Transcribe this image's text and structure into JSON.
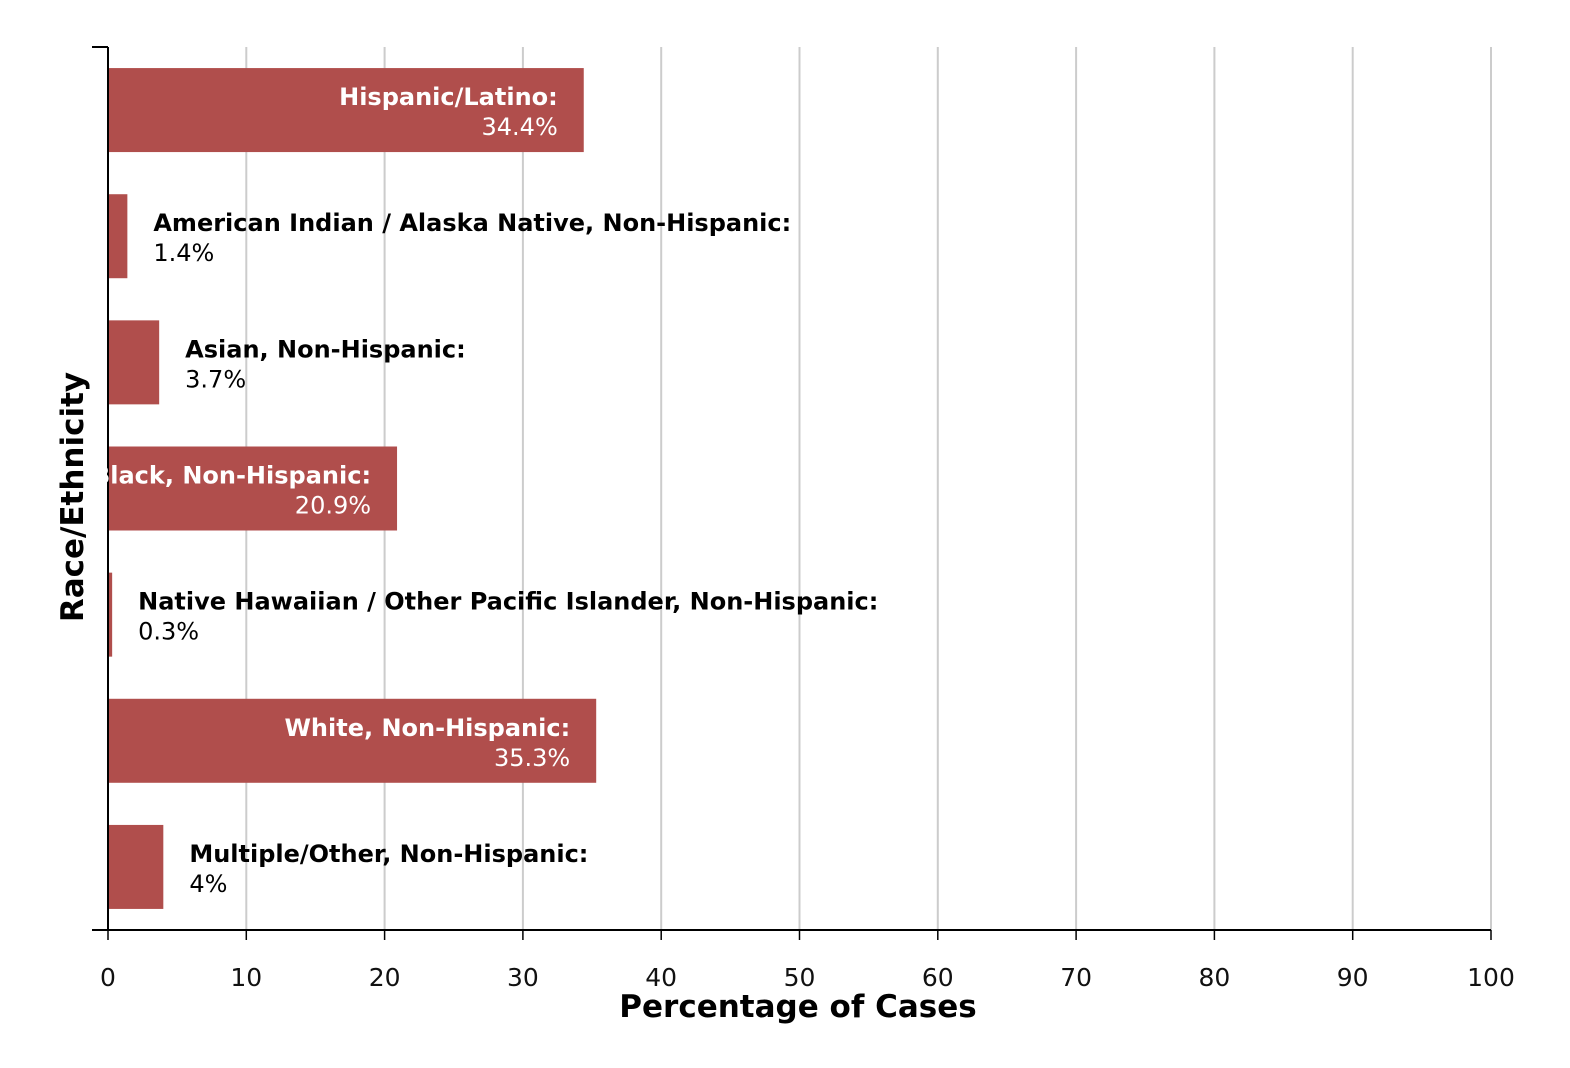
{
  "chart_data": {
    "type": "bar",
    "orientation": "horizontal",
    "xlabel": "Percentage of Cases",
    "ylabel": "Race/Ethnicity",
    "xlim": [
      0,
      100
    ],
    "xticks": [
      "0",
      "10",
      "20",
      "30",
      "40",
      "50",
      "60",
      "70",
      "80",
      "90",
      "100"
    ],
    "grid": true,
    "bar_color": "#b04e4c",
    "bars": [
      {
        "category": "Hispanic/Latino:",
        "value": 34.4,
        "value_label": "34.4%"
      },
      {
        "category": "American Indian / Alaska Native, Non-Hispanic:",
        "value": 1.4,
        "value_label": "1.4%"
      },
      {
        "category": "Asian, Non-Hispanic:",
        "value": 3.7,
        "value_label": "3.7%"
      },
      {
        "category": "Black, Non-Hispanic:",
        "value": 20.9,
        "value_label": "20.9%"
      },
      {
        "category": "Native Hawaiian / Other Pacific Islander, Non-Hispanic:",
        "value": 0.3,
        "value_label": "0.3%"
      },
      {
        "category": "White, Non-Hispanic:",
        "value": 35.3,
        "value_label": "35.3%"
      },
      {
        "category": "Multiple/Other, Non-Hispanic:",
        "value": 4,
        "value_label": "4%"
      }
    ]
  }
}
